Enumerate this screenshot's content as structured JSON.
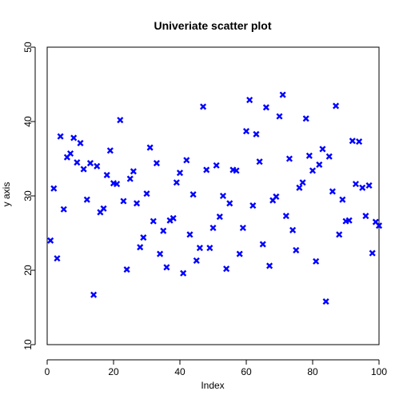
{
  "chart_data": {
    "type": "scatter",
    "title": "Univeriate scatter plot",
    "xlabel": "Index",
    "ylabel": "y axis",
    "xlim": [
      0,
      100
    ],
    "ylim": [
      10,
      50
    ],
    "xticks": [
      0,
      20,
      40,
      60,
      80,
      100
    ],
    "yticks": [
      10,
      20,
      30,
      40,
      50
    ],
    "grid": false,
    "marker": "x",
    "color": "#0000ff",
    "x": [
      1,
      2,
      3,
      4,
      5,
      6,
      7,
      8,
      9,
      10,
      11,
      12,
      13,
      14,
      15,
      16,
      17,
      18,
      19,
      20,
      21,
      22,
      23,
      24,
      25,
      26,
      27,
      28,
      29,
      30,
      31,
      32,
      33,
      34,
      35,
      36,
      37,
      38,
      39,
      40,
      41,
      42,
      43,
      44,
      45,
      46,
      47,
      48,
      49,
      50,
      51,
      52,
      53,
      54,
      55,
      56,
      57,
      58,
      59,
      60,
      61,
      62,
      63,
      64,
      65,
      66,
      67,
      68,
      69,
      70,
      71,
      72,
      73,
      74,
      75,
      76,
      77,
      78,
      79,
      80,
      81,
      82,
      83,
      84,
      85,
      86,
      87,
      88,
      89,
      90,
      91,
      92,
      93,
      94,
      95,
      96,
      97,
      98,
      99,
      100
    ],
    "y": [
      24.0,
      31.0,
      21.6,
      38.0,
      28.2,
      35.2,
      35.7,
      37.8,
      34.5,
      37.1,
      33.6,
      29.5,
      34.4,
      16.7,
      34.0,
      27.8,
      28.3,
      32.8,
      36.1,
      31.7,
      31.6,
      40.2,
      29.3,
      20.1,
      32.3,
      33.3,
      29.0,
      23.1,
      24.4,
      30.3,
      36.5,
      26.6,
      34.4,
      22.2,
      25.3,
      20.4,
      26.7,
      27.0,
      31.8,
      33.1,
      19.6,
      34.8,
      24.8,
      30.2,
      21.3,
      23.0,
      42.0,
      33.5,
      23.0,
      25.7,
      34.1,
      27.2,
      30.0,
      20.2,
      29.0,
      33.5,
      33.4,
      22.2,
      25.7,
      38.7,
      42.9,
      28.7,
      38.3,
      34.6,
      23.5,
      41.9,
      20.6,
      29.4,
      29.9,
      40.7,
      43.6,
      27.3,
      35.0,
      25.4,
      22.7,
      31.1,
      31.8,
      40.4,
      35.4,
      33.4,
      21.2,
      34.2,
      36.3,
      15.8,
      35.3,
      30.6,
      42.1,
      24.8,
      29.5,
      26.6,
      26.7,
      37.4,
      31.6,
      37.3,
      31.1,
      27.3,
      31.4,
      22.3,
      26.5,
      26.0
    ]
  }
}
